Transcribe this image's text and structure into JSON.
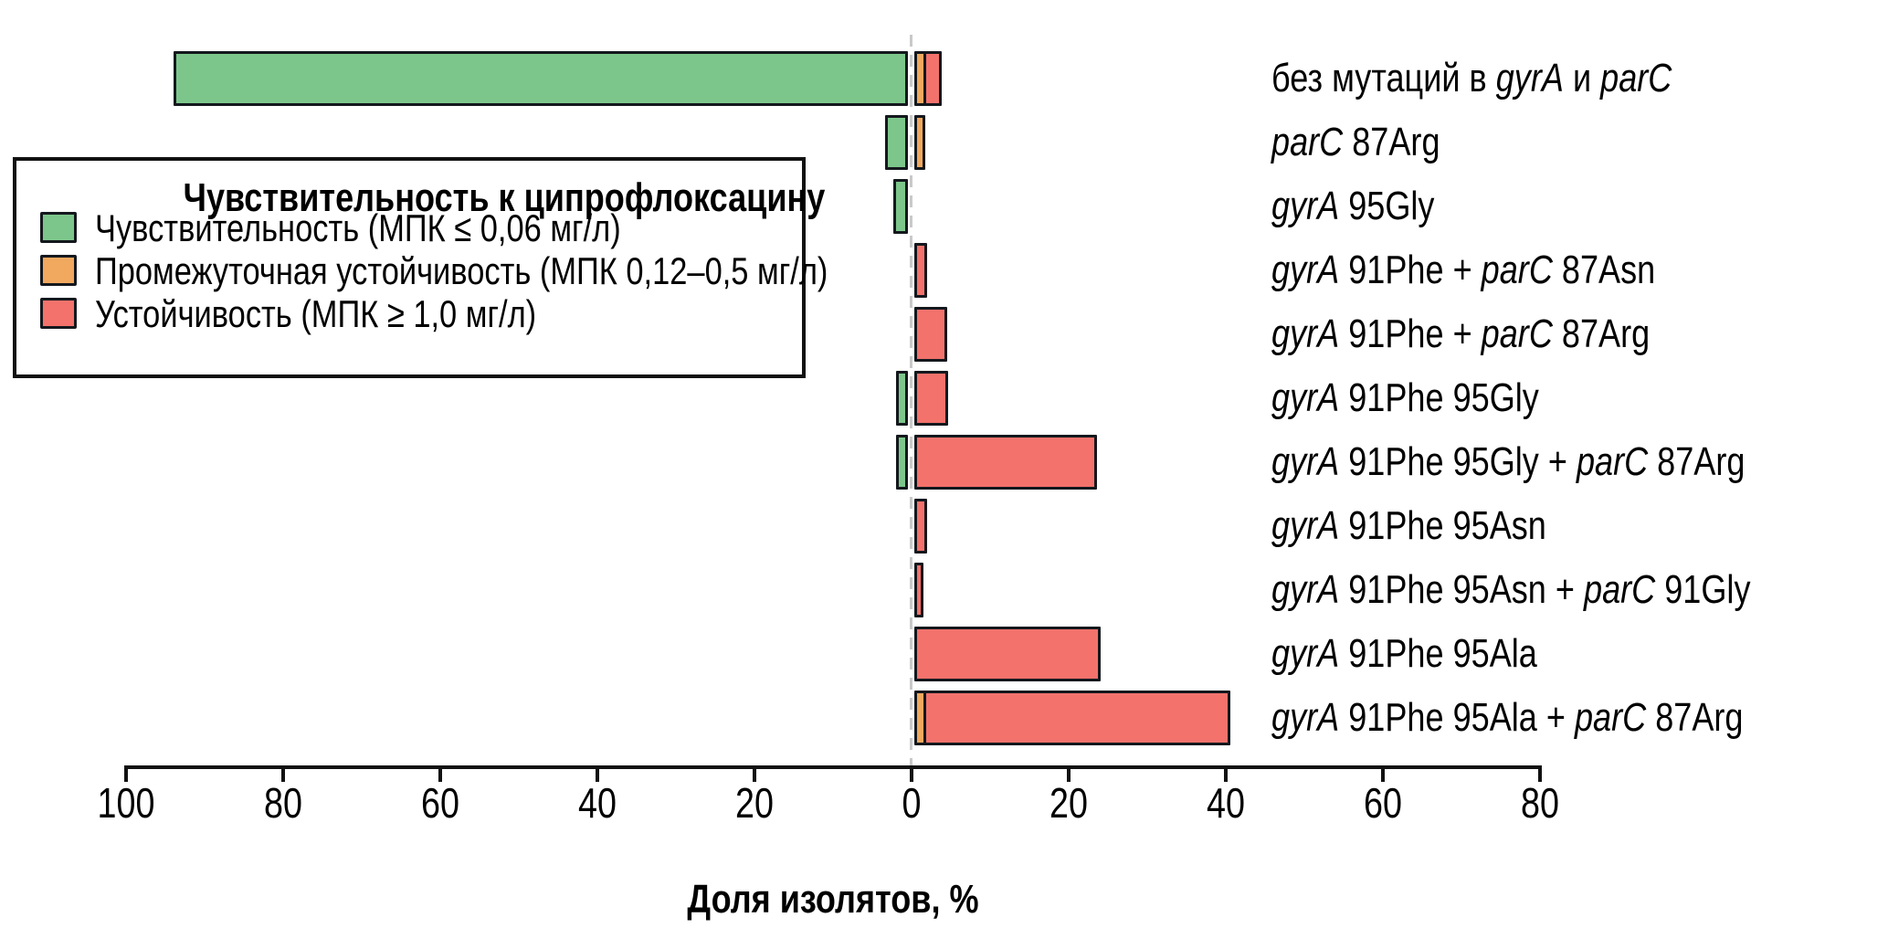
{
  "chart_data": {
    "type": "bar",
    "variant": "diverging-horizontal-stacked",
    "title": "",
    "legend_title": "Чувствительность к ципрофлоксацину",
    "xlabel": "Доля изолятов, %",
    "xlim": [
      -100,
      80
    ],
    "grid": false,
    "legend_position": "upper-left-box",
    "axis_ticks": [
      {
        "label": "100",
        "value": -100
      },
      {
        "label": "80",
        "value": -80
      },
      {
        "label": "60",
        "value": -60
      },
      {
        "label": "40",
        "value": -40
      },
      {
        "label": "20",
        "value": -20
      },
      {
        "label": "0",
        "value": 0
      },
      {
        "label": "20",
        "value": 20
      },
      {
        "label": "40",
        "value": 40
      },
      {
        "label": "60",
        "value": 60
      },
      {
        "label": "80",
        "value": 80
      }
    ],
    "categories": [
      {
        "segments": [
          {
            "t": "без мутаций в ",
            "italic": false
          },
          {
            "t": "gyrA",
            "italic": true
          },
          {
            "t": " и ",
            "italic": false
          },
          {
            "t": "parC",
            "italic": true
          }
        ]
      },
      {
        "segments": [
          {
            "t": "parC",
            "italic": true
          },
          {
            "t": " 87Arg",
            "italic": false
          }
        ]
      },
      {
        "segments": [
          {
            "t": "gyrA",
            "italic": true
          },
          {
            "t": " 95Gly",
            "italic": false
          }
        ]
      },
      {
        "segments": [
          {
            "t": "gyrA",
            "italic": true
          },
          {
            "t": " 91Phe + ",
            "italic": false
          },
          {
            "t": "parC",
            "italic": true
          },
          {
            "t": " 87Asn",
            "italic": false
          }
        ]
      },
      {
        "segments": [
          {
            "t": "gyrA",
            "italic": true
          },
          {
            "t": " 91Phe + ",
            "italic": false
          },
          {
            "t": "parC",
            "italic": true
          },
          {
            "t": " 87Arg",
            "italic": false
          }
        ]
      },
      {
        "segments": [
          {
            "t": "gyrA",
            "italic": true
          },
          {
            "t": " 91Phe 95Gly",
            "italic": false
          }
        ]
      },
      {
        "segments": [
          {
            "t": "gyrA",
            "italic": true
          },
          {
            "t": " 91Phe 95Gly + ",
            "italic": false
          },
          {
            "t": "parC",
            "italic": true
          },
          {
            "t": " 87Arg",
            "italic": false
          }
        ]
      },
      {
        "segments": [
          {
            "t": "gyrA",
            "italic": true
          },
          {
            "t": " 91Phe 95Asn",
            "italic": false
          }
        ]
      },
      {
        "segments": [
          {
            "t": "gyrA",
            "italic": true
          },
          {
            "t": " 91Phe 95Asn + ",
            "italic": false
          },
          {
            "t": "parC",
            "italic": true
          },
          {
            "t": " 91Gly",
            "italic": false
          }
        ]
      },
      {
        "segments": [
          {
            "t": "gyrA",
            "italic": true
          },
          {
            "t": " 91Phe 95Ala",
            "italic": false
          }
        ]
      },
      {
        "segments": [
          {
            "t": "gyrA",
            "italic": true
          },
          {
            "t": " 91Phe 95Ala + ",
            "italic": false
          },
          {
            "t": "parC",
            "italic": true
          },
          {
            "t": " 87Arg",
            "italic": false
          }
        ]
      }
    ],
    "series": [
      {
        "name": "Чувствительность (МПК ≤ 0,06 мг/л)",
        "color": "#7cc68b",
        "side": "left",
        "values": [
          93,
          2.4,
          1.4,
          0,
          0,
          1.1,
          1.0,
          0,
          0,
          0,
          0
        ]
      },
      {
        "name": "Промежуточная устойчивость (МПК 0,12–0,5 мг/л)",
        "color": "#f1a85f",
        "side": "right",
        "values": [
          1.0,
          0.9,
          0,
          0,
          0,
          0,
          0,
          0,
          0,
          0,
          1.0
        ]
      },
      {
        "name": "Устойчивость (МПК ≥ 1,0 мг/л)",
        "color": "#f3726c",
        "side": "right",
        "values": [
          1.9,
          0,
          0,
          1.2,
          3.7,
          3.8,
          22.8,
          1.2,
          0.6,
          23.2,
          38.6
        ]
      }
    ],
    "colors": {
      "bar_border": "#14181d",
      "zero_line": "#c9c9c9",
      "axis": "#111111",
      "text": "#000000",
      "background": "#ffffff"
    }
  }
}
